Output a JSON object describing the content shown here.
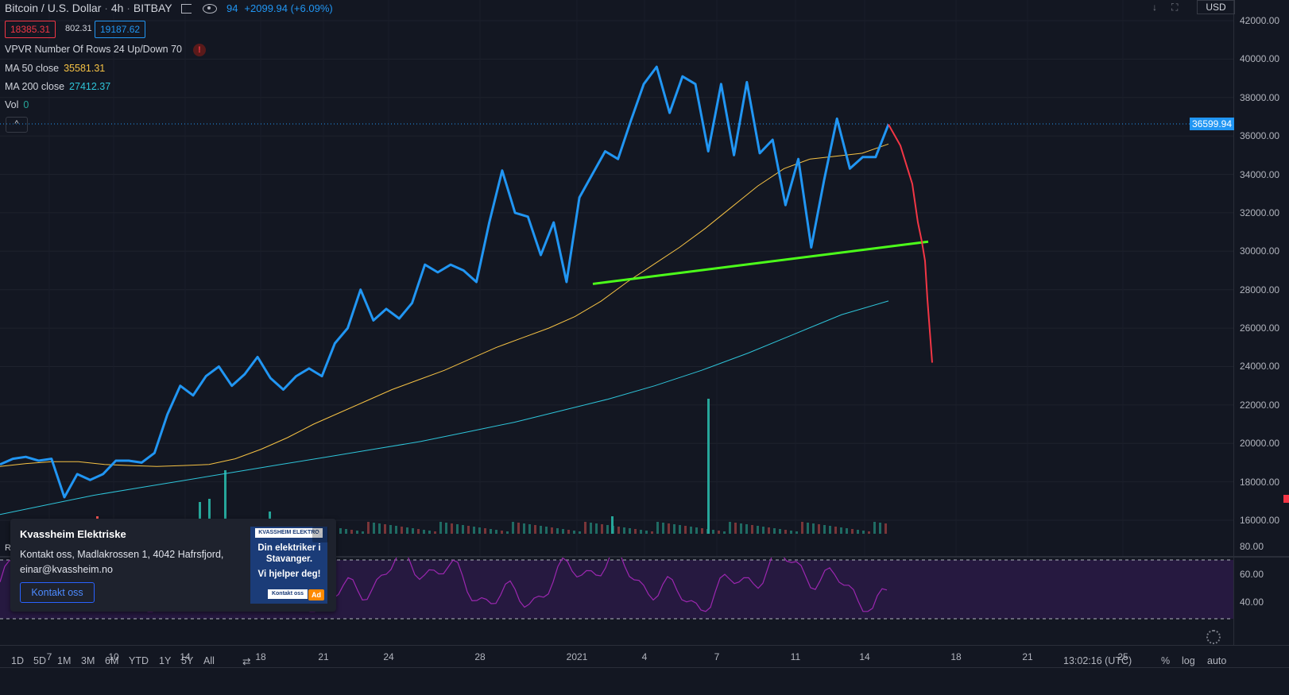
{
  "header": {
    "symbol": "Bitcoin / U.S. Dollar",
    "interval": "4h",
    "exchange": "BITBAY",
    "change_partial": "94",
    "change": "+2099.94 (+6.09%)"
  },
  "price_boxes": {
    "bid": "18385.31",
    "spread": "802.31",
    "ask": "19187.62"
  },
  "legend": {
    "vpvr": "VPVR Number Of Rows 24 Up/Down 70",
    "warning": "!",
    "ma50_label": "MA 50 close",
    "ma50_value": "35581.31",
    "ma200_label": "MA 200 close",
    "ma200_value": "27412.37",
    "vol_label": "Vol",
    "vol_value": "0",
    "collapse": "^"
  },
  "price_axis": {
    "currency": "USD",
    "ticks": [
      "42000.00",
      "40000.00",
      "38000.00",
      "36000.00",
      "34000.00",
      "32000.00",
      "30000.00",
      "28000.00",
      "26000.00",
      "24000.00",
      "22000.00",
      "20000.00",
      "18000.00",
      "16000.00"
    ],
    "last_price": "36599.94"
  },
  "rsi_axis": {
    "ticks": [
      "80.00",
      "60.00",
      "40.00"
    ],
    "label": "R"
  },
  "time_axis": [
    "7",
    "10",
    "14",
    "18",
    "21",
    "24",
    "28",
    "2021",
    "4",
    "7",
    "11",
    "14",
    "18",
    "21",
    "25"
  ],
  "timeframes": [
    "1D",
    "5D",
    "1M",
    "3M",
    "6M",
    "YTD",
    "1Y",
    "5Y",
    "All"
  ],
  "bottom_bar": {
    "clock": "13:02:16 (UTC)",
    "percent": "%",
    "log": "log",
    "auto": "auto"
  },
  "ad": {
    "title": "Kvassheim Elektriske",
    "text": "Kontakt oss, Madlakrossen 1, 4042 Hafrsfjord, einar@kvassheim.no",
    "button": "Kontakt oss",
    "image_logo": "KVASSHEIM ELEKTRO",
    "image_line1": "Din elektriker i Stavanger.",
    "image_line2": "Vi hjelper deg!",
    "image_button": "Kontakt oss",
    "badge": "Ad",
    "close": "×"
  },
  "colors": {
    "background": "#131722",
    "price_line": "#2196f3",
    "ma50": "#f6c244",
    "ma200": "#2ec4d9",
    "trendline": "#4cff1a",
    "projection": "#f23645",
    "rsi": "#9c27b0",
    "volume_up": "#26a69a",
    "volume_down": "#ef5350"
  },
  "chart_data": {
    "type": "line",
    "title": "Bitcoin / U.S. Dollar · 4h · BITBAY",
    "ylim": [
      15500,
      42500
    ],
    "x_ticks": [
      "7",
      "10",
      "14",
      "18",
      "21",
      "24",
      "28",
      "2021",
      "4",
      "7",
      "11",
      "14",
      "18",
      "21",
      "25"
    ],
    "series": [
      {
        "name": "Bitcoin / U.S. Dollar",
        "values": [
          18900,
          19200,
          19300,
          19100,
          19200,
          17200,
          18400,
          18100,
          18400,
          19100,
          19100,
          19000,
          19500,
          21500,
          23000,
          22500,
          23500,
          24000,
          23000,
          23600,
          24500,
          23400,
          22800,
          23500,
          23900,
          23500,
          25200,
          26000,
          28000,
          26400,
          27000,
          26500,
          27300,
          29300,
          28900,
          29300,
          29000,
          28400,
          31500,
          34200,
          32000,
          31800,
          29800,
          31500,
          28400,
          32800,
          34000,
          35200,
          34800,
          36800,
          38700,
          39600,
          37200,
          39100,
          38700,
          35200,
          38700,
          35000,
          38800,
          35100,
          35800,
          32400,
          34800,
          30200,
          33700,
          36900,
          34300,
          34900,
          34900,
          36599.94
        ]
      },
      {
        "name": "MA 50 close",
        "values": [
          18800,
          18950,
          19050,
          19050,
          18900,
          18850,
          18800,
          18850,
          18900,
          19200,
          19700,
          20300,
          21000,
          21600,
          22200,
          22800,
          23300,
          23800,
          24400,
          25000,
          25500,
          26000,
          26600,
          27400,
          28400,
          29300,
          30200,
          31200,
          32300,
          33400,
          34300,
          34800,
          34950,
          35100,
          35581.31
        ]
      },
      {
        "name": "MA 200 close",
        "values": [
          16300,
          16800,
          17300,
          17700,
          18100,
          18500,
          18900,
          19300,
          19700,
          20100,
          20600,
          21100,
          21700,
          22300,
          23000,
          23800,
          24700,
          25700,
          26700,
          27412.37
        ]
      },
      {
        "name": "Trendline",
        "values": [
          28300,
          30500
        ]
      },
      {
        "name": "Projection",
        "values": [
          36599.94,
          35500,
          33500,
          31500,
          30500,
          29500,
          27500,
          24200
        ]
      }
    ],
    "rsi": {
      "ylim": [
        20,
        90
      ],
      "bands": [
        30,
        70
      ]
    }
  }
}
